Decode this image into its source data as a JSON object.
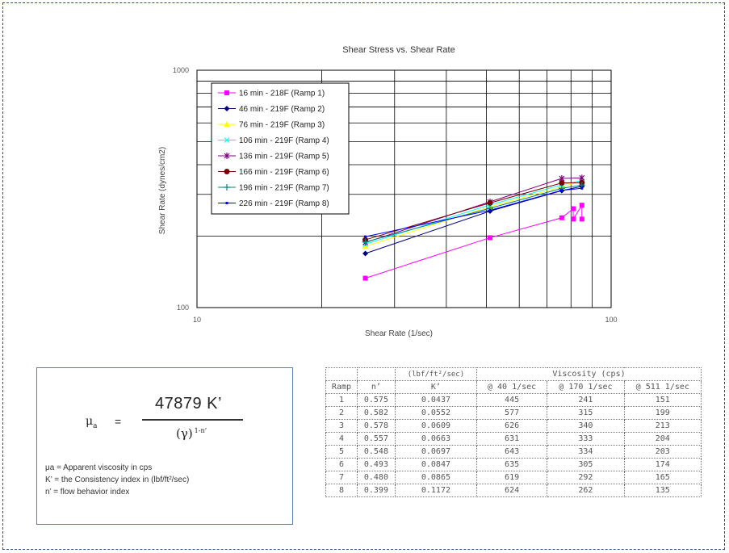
{
  "chart_data": {
    "type": "scatter",
    "title": "Shear Stress vs. Shear Rate",
    "xlabel": "Shear Rate (1/sec)",
    "ylabel": "Shear Rate (dynes/cm2)",
    "x_scale": "log",
    "y_scale": "log",
    "xlim": [
      10,
      100
    ],
    "ylim": [
      100,
      1000
    ],
    "x_ticks": [
      "10",
      "100"
    ],
    "y_ticks": [
      "100",
      "1000"
    ],
    "grid": true,
    "legend_position": "top-left",
    "series": [
      {
        "name": "16 min - 218F (Ramp 1)",
        "color": "#ff00ff",
        "marker": "square",
        "points": [
          [
            25.5,
            133
          ],
          [
            51,
            197
          ],
          [
            76,
            239
          ],
          [
            81,
            261
          ],
          [
            81,
            236
          ],
          [
            85,
            270
          ],
          [
            85,
            236
          ]
        ]
      },
      {
        "name": "46 min - 219F (Ramp 2)",
        "color": "#000080",
        "marker": "diamond",
        "points": [
          [
            25.5,
            169
          ],
          [
            51,
            255
          ],
          [
            76,
            311
          ],
          [
            85,
            324
          ]
        ]
      },
      {
        "name": "76 min - 219F (Ramp 3)",
        "color": "#ffff00",
        "marker": "triangle",
        "points": [
          [
            25.5,
            181
          ],
          [
            51,
            266
          ],
          [
            76,
            323
          ],
          [
            85,
            341
          ]
        ]
      },
      {
        "name": "106 min - 219F (Ramp 4)",
        "color": "#00ffff",
        "marker": "x",
        "points": [
          [
            25.5,
            185
          ],
          [
            51,
            271
          ],
          [
            76,
            329
          ],
          [
            85,
            343
          ]
        ]
      },
      {
        "name": "136 min - 219F (Ramp 5)",
        "color": "#800080",
        "marker": "star",
        "points": [
          [
            25.5,
            188
          ],
          [
            51,
            279
          ],
          [
            76,
            350
          ],
          [
            85,
            352
          ]
        ]
      },
      {
        "name": "166 min - 219F (Ramp 6)",
        "color": "#800000",
        "marker": "circle",
        "points": [
          [
            25.5,
            193
          ],
          [
            51,
            276
          ],
          [
            76,
            335
          ],
          [
            85,
            336
          ]
        ]
      },
      {
        "name": "196 min - 219F (Ramp 7)",
        "color": "#008080",
        "marker": "plus",
        "points": [
          [
            25.5,
            189
          ],
          [
            51,
            262
          ],
          [
            76,
            318
          ],
          [
            85,
            328
          ]
        ]
      },
      {
        "name": "226 min - 219F (Ramp 8)",
        "color": "#0000ff",
        "marker": "dot",
        "points": [
          [
            25.5,
            199
          ],
          [
            51,
            257
          ],
          [
            76,
            312
          ],
          [
            85,
            318
          ]
        ]
      }
    ]
  },
  "formula": {
    "mu": "μ",
    "mu_sub": "a",
    "equals": "=",
    "numerator": "47879 K’",
    "denominator": "(γ)",
    "exponent": "1-n’",
    "definitions": [
      "μa = Apparent viscosity in cps",
      "K’ = the Consistency index in (lbf/ft²/sec)",
      "n’ = flow behavior index"
    ]
  },
  "table": {
    "group_headers": [
      "",
      "",
      "(lbf/ft²/sec)",
      "Viscosity (cps)"
    ],
    "headers": [
      "Ramp",
      "n’",
      "K’",
      "@  40  1/sec",
      "@ 170 1/sec",
      "@ 511  1/sec"
    ],
    "rows": [
      [
        "1",
        "0.575",
        "0.0437",
        "445",
        "241",
        "151"
      ],
      [
        "2",
        "0.582",
        "0.0552",
        "577",
        "315",
        "199"
      ],
      [
        "3",
        "0.578",
        "0.0609",
        "626",
        "340",
        "213"
      ],
      [
        "4",
        "0.557",
        "0.0663",
        "631",
        "333",
        "204"
      ],
      [
        "5",
        "0.548",
        "0.0697",
        "643",
        "334",
        "203"
      ],
      [
        "6",
        "0.493",
        "0.0847",
        "635",
        "305",
        "174"
      ],
      [
        "7",
        "0.480",
        "0.0865",
        "619",
        "292",
        "165"
      ],
      [
        "8",
        "0.399",
        "0.1172",
        "624",
        "262",
        "135"
      ]
    ]
  }
}
